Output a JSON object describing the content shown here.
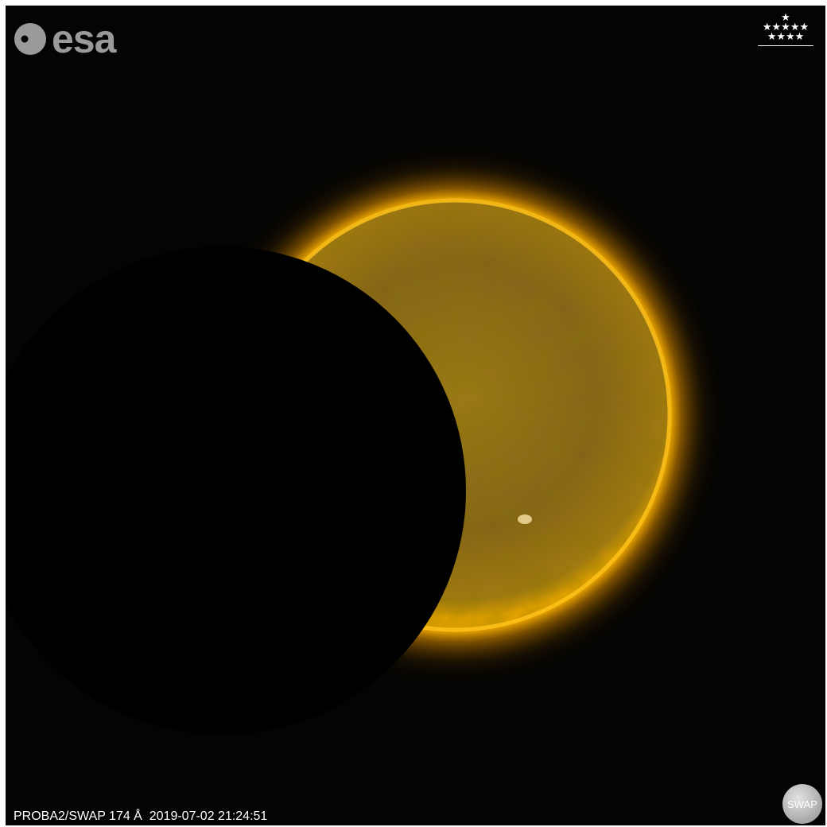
{
  "logo": {
    "text": "esa"
  },
  "stars": {
    "rows": [
      "★",
      "★★★★★",
      "★★★★"
    ]
  },
  "caption": {
    "instrument": "PROBA2/SWAP 174 Å",
    "timestamp": "2019-07-02 21:24:51"
  },
  "badge": {
    "label": "SWAP"
  },
  "colors": {
    "background": "#050402",
    "sun_corona": "#ffb300",
    "sun_disk": "#8a6a10",
    "moon": "#000000",
    "logo_gray": "#9a9a9a"
  }
}
